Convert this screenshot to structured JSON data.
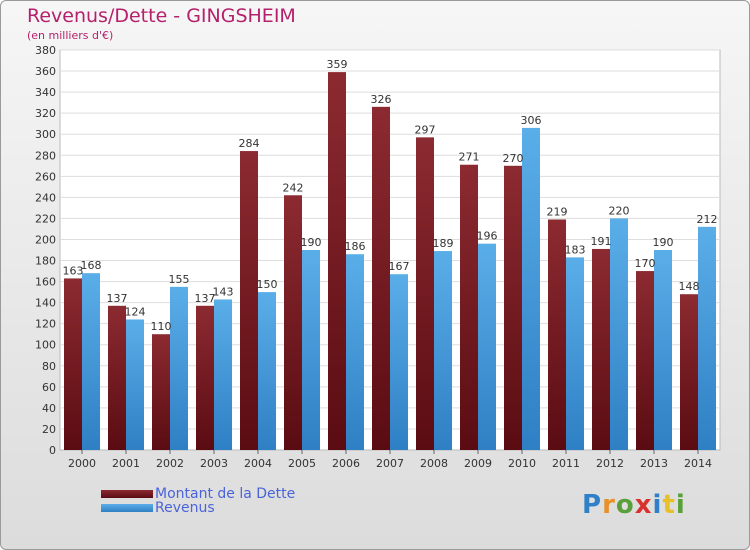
{
  "chart_data": {
    "type": "bar",
    "title": "Revenus/Dette - GINGSHEIM",
    "subtitle": "(en milliers d'€)",
    "xlabel": "",
    "ylabel": "",
    "categories": [
      "2000",
      "2001",
      "2002",
      "2003",
      "2004",
      "2005",
      "2006",
      "2007",
      "2008",
      "2009",
      "2010",
      "2011",
      "2012",
      "2013",
      "2014"
    ],
    "series": [
      {
        "name": "Montant de la Dette",
        "color": "#7a1f26",
        "values": [
          163,
          137,
          110,
          137,
          284,
          242,
          359,
          326,
          297,
          271,
          270,
          219,
          191,
          170,
          148
        ]
      },
      {
        "name": "Revenus",
        "color": "#4ea3e3",
        "values": [
          168,
          124,
          155,
          143,
          150,
          190,
          186,
          167,
          189,
          196,
          306,
          183,
          220,
          190,
          212
        ]
      }
    ],
    "ylim": [
      0,
      380
    ],
    "ytick_step": 20,
    "grid": true,
    "legend_position": "bottom-left"
  },
  "logo": {
    "text": "Proxiti"
  }
}
